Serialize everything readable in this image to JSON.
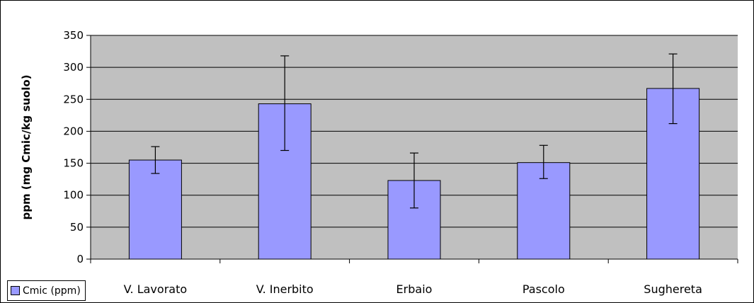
{
  "chart_data": {
    "type": "bar",
    "title": "",
    "xlabel": "",
    "ylabel": "ppm (mg Cmic/kg suolo)",
    "ylim": [
      0,
      350
    ],
    "yticks": [
      0,
      50,
      100,
      150,
      200,
      250,
      300,
      350
    ],
    "grid": true,
    "legend_position": "bottom-left",
    "categories": [
      "V. Lavorato",
      "V. Inerbito",
      "Erbaio",
      "Pascolo",
      "Sughereta"
    ],
    "series": [
      {
        "name": "Cmic (ppm)",
        "color": "#9999ff",
        "values": [
          155,
          243,
          123,
          151,
          267
        ],
        "error_low": [
          134,
          170,
          80,
          126,
          212
        ],
        "error_high": [
          176,
          318,
          166,
          178,
          321
        ]
      }
    ],
    "plot_background": "#c0c0c0"
  }
}
